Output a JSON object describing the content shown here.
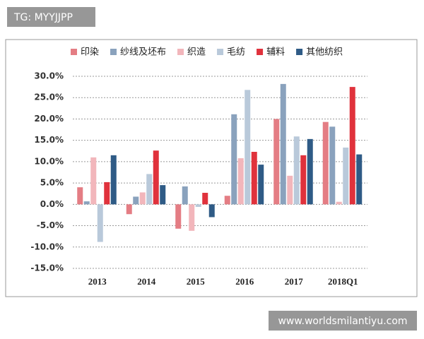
{
  "chart_data": {
    "type": "bar",
    "categories": [
      "2013",
      "2014",
      "2015",
      "2016",
      "2017",
      "2018Q1"
    ],
    "series": [
      {
        "name": "印染",
        "color": "#e47d84",
        "values": [
          4.0,
          -2.3,
          -5.7,
          2.0,
          20.0,
          19.3
        ]
      },
      {
        "name": "纱线及坯布",
        "color": "#8aa2bd",
        "values": [
          0.7,
          1.8,
          4.2,
          21.1,
          28.2,
          18.2
        ]
      },
      {
        "name": "织造",
        "color": "#f2b6bb",
        "values": [
          11.0,
          2.8,
          -6.2,
          10.8,
          6.7,
          0.6
        ]
      },
      {
        "name": "毛纺",
        "color": "#b9c9da",
        "values": [
          -8.8,
          7.1,
          -0.6,
          26.8,
          15.9,
          13.3
        ]
      },
      {
        "name": "辅料",
        "color": "#e0323c",
        "values": [
          5.2,
          12.6,
          2.7,
          12.3,
          11.5,
          27.5
        ]
      },
      {
        "name": "其他纺织",
        "color": "#2f5b86",
        "values": [
          11.5,
          4.5,
          -3.0,
          9.3,
          15.3,
          11.7
        ]
      }
    ],
    "ylim": [
      -15,
      30
    ],
    "yticks": [
      {
        "value": 30,
        "label": "30.0%"
      },
      {
        "value": 25,
        "label": "25.0%"
      },
      {
        "value": 20,
        "label": "20.0%"
      },
      {
        "value": 15,
        "label": "15.0%"
      },
      {
        "value": 10,
        "label": "10.0%"
      },
      {
        "value": 5,
        "label": "5.0%"
      },
      {
        "value": 0,
        "label": "0.0%"
      },
      {
        "value": -5,
        "label": "-5.0%"
      },
      {
        "value": -10,
        "label": "-10.0%"
      },
      {
        "value": -15,
        "label": "-15.0%"
      }
    ],
    "grid": true,
    "legend": "top"
  },
  "overlays": {
    "tag": "TG: MYYJJPP",
    "site": "www.worldsmilantiyu.com"
  }
}
